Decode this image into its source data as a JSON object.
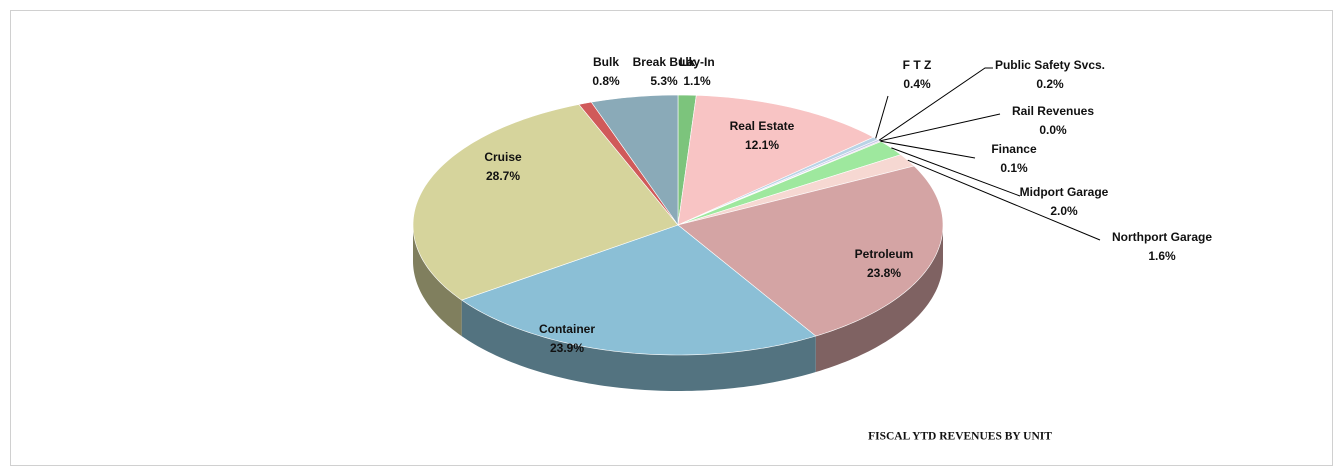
{
  "chart_data": {
    "type": "pie3d",
    "title": "FISCAL YTD REVENUES BY UNIT",
    "categories": [
      "Lay-In",
      "Real Estate",
      "F T Z",
      "Public Safety Svcs.",
      "Rail Revenues",
      "Finance",
      "Midport Garage",
      "Northport Garage",
      "Petroleum",
      "Container",
      "Cruise",
      "Bulk",
      "Break Bulk"
    ],
    "values": [
      1.1,
      12.1,
      0.4,
      0.2,
      0.0,
      0.1,
      2.0,
      1.6,
      23.8,
      23.9,
      28.7,
      0.8,
      5.3
    ],
    "value_labels": [
      "1.1%",
      "12.1%",
      "0.4%",
      "0.2%",
      "0.0%",
      "0.1%",
      "2.0%",
      "1.6%",
      "23.8%",
      "23.9%",
      "28.7%",
      "0.8%",
      "5.3%"
    ],
    "colors": [
      "#7cc47c",
      "#f8c4c4",
      "#b9d3e6",
      "#c8c8e8",
      "#d8d0a8",
      "#e0b8d8",
      "#9ee89e",
      "#f6d8d2",
      "#d4a4a4",
      "#8bbfd6",
      "#d6d49c",
      "#d05a5a",
      "#8aaab8"
    ]
  }
}
